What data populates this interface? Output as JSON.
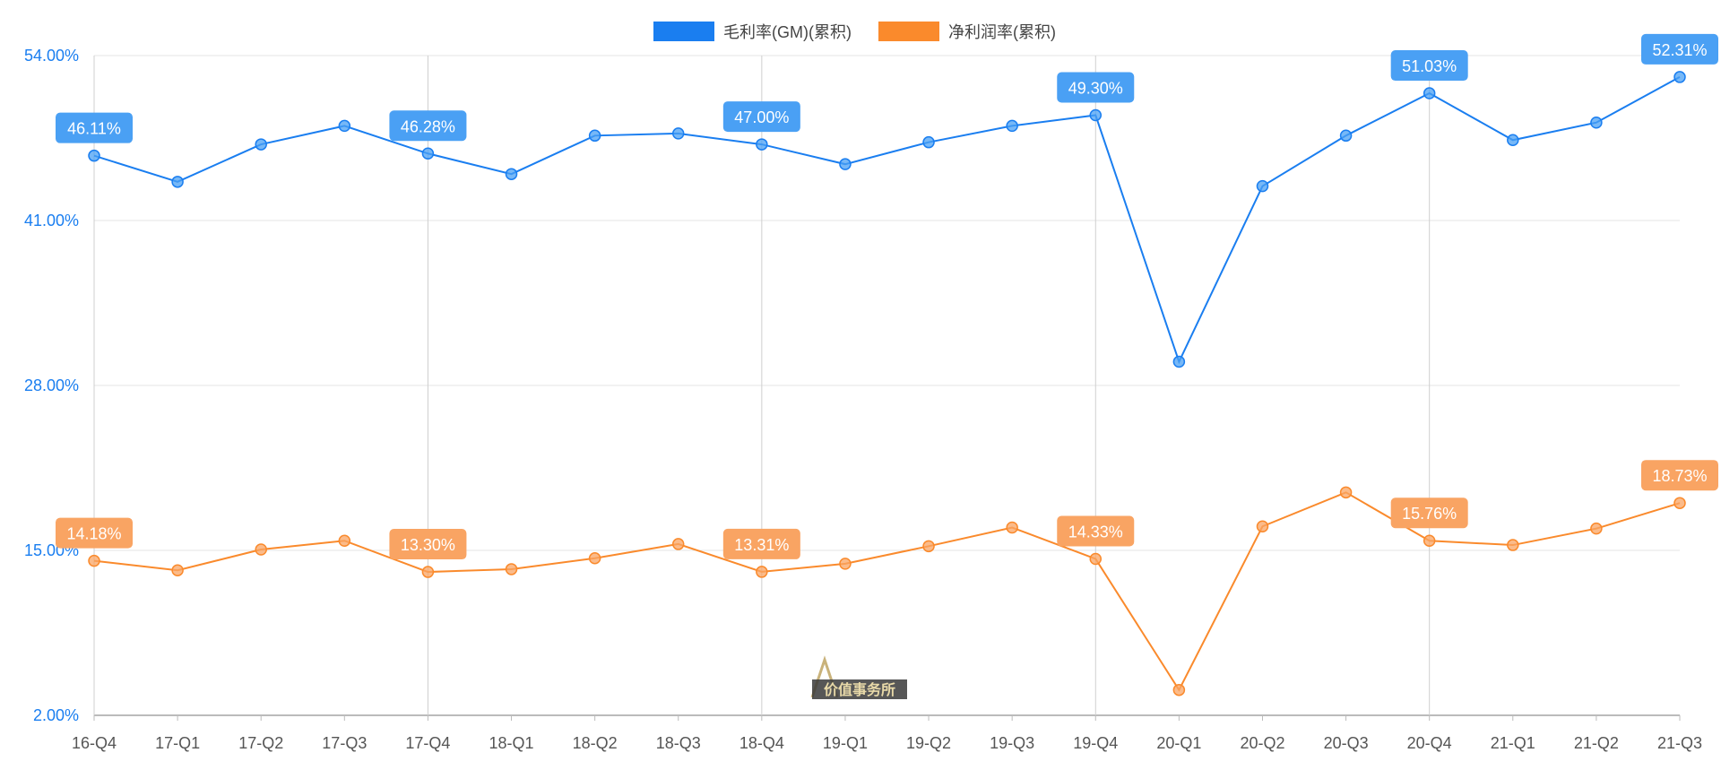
{
  "chart_data": {
    "type": "line",
    "title": "",
    "xlabel": "",
    "ylabel": "",
    "ylim": [
      2,
      54
    ],
    "yticks": [
      "2.00%",
      "15.00%",
      "28.00%",
      "41.00%",
      "54.00%"
    ],
    "ytick_values": [
      2,
      15,
      28,
      41,
      54
    ],
    "grid": true,
    "legend_position": "top-center",
    "categories": [
      "16-Q4",
      "17-Q1",
      "17-Q2",
      "17-Q3",
      "17-Q4",
      "18-Q1",
      "18-Q2",
      "18-Q3",
      "18-Q4",
      "19-Q1",
      "19-Q2",
      "19-Q3",
      "19-Q4",
      "20-Q1",
      "20-Q2",
      "20-Q3",
      "20-Q4",
      "21-Q1",
      "21-Q2",
      "21-Q3"
    ],
    "series": [
      {
        "name": "毛利率(GM)(累积)",
        "color": "#1a7ef0",
        "label_color": "#4aa0f4",
        "values": [
          46.11,
          44.05,
          47.0,
          48.46,
          46.28,
          44.66,
          47.69,
          47.86,
          47.0,
          45.44,
          47.17,
          48.46,
          49.3,
          29.87,
          43.71,
          47.69,
          51.03,
          47.34,
          48.72,
          52.31
        ],
        "data_labels": {
          "0": "46.11%",
          "4": "46.28%",
          "8": "47.00%",
          "12": "49.30%",
          "16": "51.03%",
          "19": "52.31%"
        }
      },
      {
        "name": "净利润率(累积)",
        "color": "#fa8a2c",
        "label_color": "#f9a463",
        "values": [
          14.18,
          13.43,
          15.07,
          15.76,
          13.3,
          13.52,
          14.38,
          15.5,
          13.31,
          13.95,
          15.33,
          16.8,
          14.33,
          4.0,
          16.89,
          19.57,
          15.76,
          15.42,
          16.72,
          18.73
        ],
        "data_labels": {
          "0": "14.18%",
          "4": "13.30%",
          "8": "13.31%",
          "12": "14.33%",
          "16": "15.76%",
          "19": "18.73%"
        }
      }
    ]
  },
  "watermark": "价值事务所"
}
